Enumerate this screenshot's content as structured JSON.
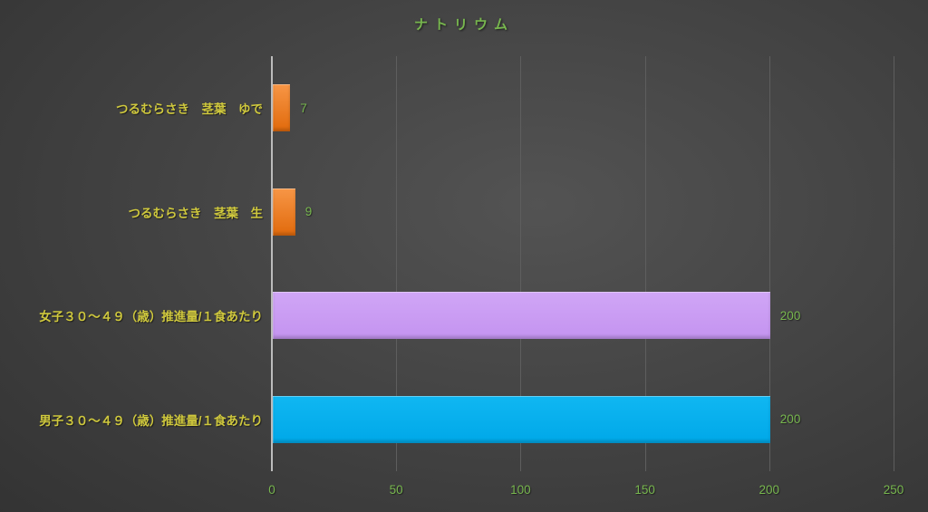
{
  "chart_data": {
    "type": "bar",
    "orientation": "horizontal",
    "title": "ナトリウム",
    "categories": [
      "つるむらさき　茎葉　ゆで",
      "つるむらさき　茎葉　生",
      "女子３０～４９（歳）推進量/１食あたり",
      "男子３０～４９（歳）推進量/１食あたり"
    ],
    "values": [
      7,
      9,
      200,
      200
    ],
    "value_labels": [
      "7",
      "9",
      "200",
      "200"
    ],
    "xlabel": "",
    "ylabel": "",
    "xlim": [
      0,
      250
    ],
    "x_ticks": [
      0,
      50,
      100,
      150,
      200,
      250
    ],
    "grid": true,
    "legend": false,
    "bar_colors": [
      {
        "top": "#f79646",
        "bottom": "#e16a0c"
      },
      {
        "top": "#f79646",
        "bottom": "#e16a0c"
      },
      {
        "top": "#d0a6f6",
        "bottom": "#c493f0"
      },
      {
        "top": "#10b7f2",
        "bottom": "#00a8e8"
      }
    ]
  },
  "colors": {
    "background_center": "#535353",
    "background_edge": "#242424",
    "title_text": "#77b64e",
    "category_text": "#cfc83d",
    "value_text": "#77b64e",
    "tick_text": "#77b64e",
    "axis_line": "#bcbcbc",
    "gridline": "#5e5e5e"
  }
}
